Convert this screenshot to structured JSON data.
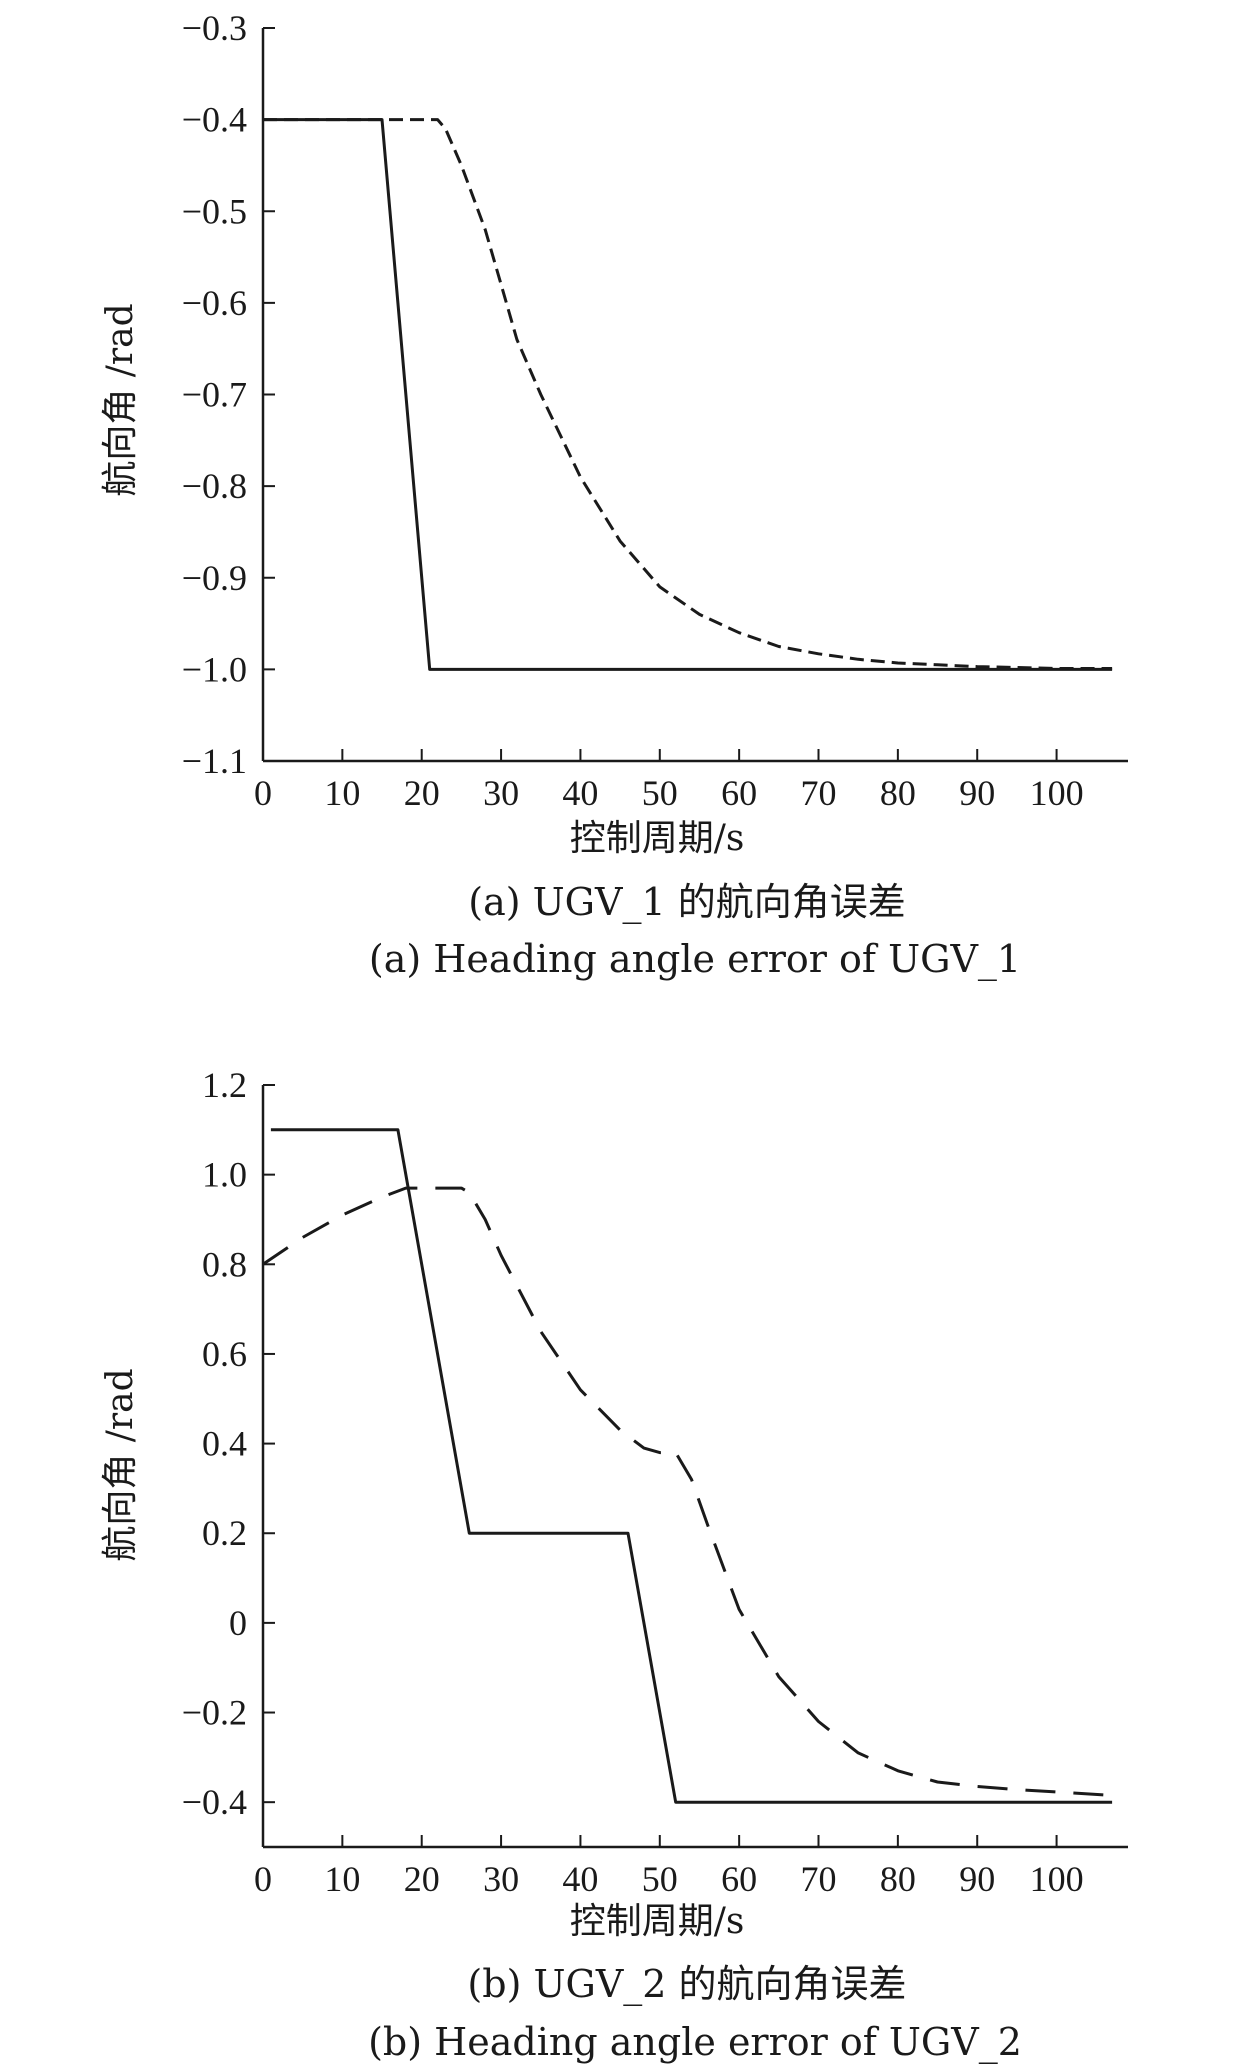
{
  "chart_data": [
    {
      "type": "line",
      "xlabel": "控制周期/s",
      "ylabel": "航向角 /rad",
      "caption_cn": "(a) UGV_1 的航向角误差",
      "caption_en": "(a) Heading angle error of UGV_1",
      "xlim": [
        0,
        109
      ],
      "ylim": [
        -1.1,
        -0.3
      ],
      "xticks": [
        0,
        10,
        20,
        30,
        40,
        50,
        60,
        70,
        80,
        90,
        100
      ],
      "xtick_labels": [
        "0",
        "10",
        "20",
        "30",
        "40",
        "50",
        "60",
        "70",
        "80",
        "90",
        "100"
      ],
      "yticks": [
        -1.1,
        -1.0,
        -0.9,
        -0.8,
        -0.7,
        -0.6,
        -0.5,
        -0.4,
        -0.3
      ],
      "ytick_labels": [
        "−1.1",
        "−1.0",
        "−0.9",
        "−0.8",
        "−0.7",
        "−0.6",
        "−0.5",
        "−0.4",
        "−0.3"
      ],
      "series": [
        {
          "style": "solid",
          "x": [
            0,
            15,
            21,
            107
          ],
          "y": [
            -0.4,
            -0.4,
            -1.0,
            -1.0
          ]
        },
        {
          "style": "dashed",
          "x": [
            0,
            22,
            23,
            25,
            28,
            30,
            32,
            35,
            40,
            45,
            50,
            55,
            60,
            65,
            70,
            75,
            80,
            85,
            90,
            95,
            100,
            107
          ],
          "y": [
            -0.4,
            -0.4,
            -0.41,
            -0.45,
            -0.52,
            -0.58,
            -0.64,
            -0.7,
            -0.79,
            -0.86,
            -0.91,
            -0.94,
            -0.96,
            -0.975,
            -0.983,
            -0.989,
            -0.993,
            -0.995,
            -0.997,
            -0.998,
            -0.999,
            -0.999
          ]
        }
      ]
    },
    {
      "type": "line",
      "xlabel": "控制周期/s",
      "ylabel": "航向角 /rad",
      "caption_cn": "(b) UGV_2 的航向角误差",
      "caption_en": "(b) Heading angle error of UGV_2",
      "xlim": [
        0,
        109
      ],
      "ylim": [
        -0.5,
        1.2
      ],
      "xticks": [
        0,
        10,
        20,
        30,
        40,
        50,
        60,
        70,
        80,
        90,
        100
      ],
      "xtick_labels": [
        "0",
        "10",
        "20",
        "30",
        "40",
        "50",
        "60",
        "70",
        "80",
        "90",
        "100"
      ],
      "yticks": [
        -0.4,
        -0.2,
        0,
        0.2,
        0.4,
        0.6,
        0.8,
        1.0,
        1.2
      ],
      "ytick_labels": [
        "−0.4",
        "−0.2",
        "0",
        "0.2",
        "0.4",
        "0.6",
        "0.8",
        "1.0",
        "1.2"
      ],
      "series": [
        {
          "style": "solid",
          "x": [
            1,
            17,
            26,
            46,
            52,
            107
          ],
          "y": [
            1.1,
            1.1,
            0.2,
            0.2,
            -0.4,
            -0.4
          ]
        },
        {
          "style": "dashed",
          "x": [
            0,
            5,
            10,
            15,
            18,
            20,
            22,
            25,
            26,
            28,
            30,
            35,
            40,
            45,
            48,
            50,
            52,
            54,
            56,
            60,
            65,
            70,
            75,
            80,
            85,
            90,
            95,
            100,
            107
          ],
          "y": [
            0.8,
            0.86,
            0.91,
            0.95,
            0.97,
            0.97,
            0.97,
            0.97,
            0.96,
            0.9,
            0.82,
            0.65,
            0.52,
            0.43,
            0.39,
            0.38,
            0.38,
            0.32,
            0.22,
            0.03,
            -0.12,
            -0.22,
            -0.29,
            -0.33,
            -0.355,
            -0.365,
            -0.372,
            -0.377,
            -0.385
          ]
        }
      ]
    }
  ]
}
